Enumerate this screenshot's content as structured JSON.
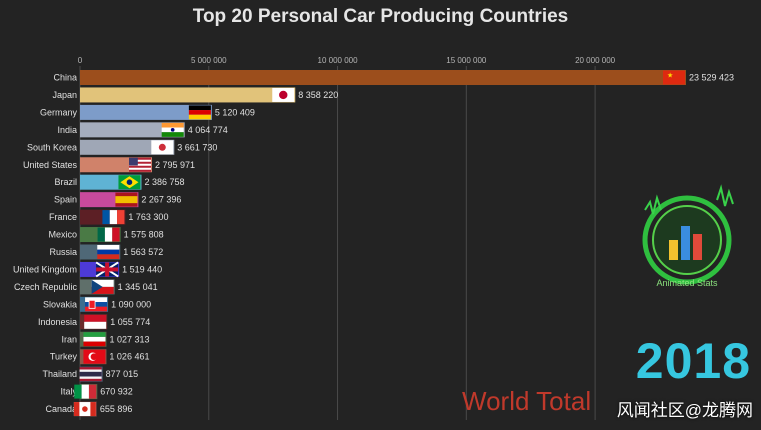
{
  "chart_data": {
    "type": "bar",
    "orientation": "horizontal",
    "title": "Top 20 Personal Car Producing Countries",
    "year": "2018",
    "footer_text": "World Total",
    "xlim": [
      0,
      23529423
    ],
    "x_ticks": [
      0,
      5000000,
      10000000,
      15000000,
      20000000
    ],
    "x_tick_labels": [
      "0",
      "5 000 000",
      "10 000 000",
      "15 000 000",
      "20 000 000"
    ],
    "grid": true,
    "categories": [
      "China",
      "Japan",
      "Germany",
      "India",
      "South Korea",
      "United States",
      "Brazil",
      "Spain",
      "France",
      "Mexico",
      "Russia",
      "United Kingdom",
      "Czech Republic",
      "Slovakia",
      "Indonesia",
      "Iran",
      "Turkey",
      "Thailand",
      "Italy",
      "Canada"
    ],
    "values": [
      23529423,
      8358220,
      5120409,
      4064774,
      3661730,
      2795971,
      2386758,
      2267396,
      1763300,
      1575808,
      1563572,
      1519440,
      1345041,
      1090000,
      1055774,
      1027313,
      1026461,
      877015,
      670932,
      655896
    ],
    "value_labels": [
      "23 529 423",
      "8 358 220",
      "5 120 409",
      "4 064 774",
      "3 661 730",
      "2 795 971",
      "2 386 758",
      "2 267 396",
      "1 763 300",
      "1 575 808",
      "1 563 572",
      "1 519 440",
      "1 345 041",
      "1 090 000",
      "1 055 774",
      "1 027 313",
      "1 026 461",
      "877 015",
      "670 932",
      "655 896"
    ],
    "colors": [
      "#9c4e1c",
      "#e1c37a",
      "#7d9cc9",
      "#a5adbd",
      "#9fa7b6",
      "#d0826a",
      "#5fb3d4",
      "#c84a9c",
      "#5c1f25",
      "#4a7a45",
      "#4f6877",
      "#4d3ad6",
      "#5f6f6a",
      "#3b6e8f",
      "#6b2b2b",
      "#53684a",
      "#8c5a4a",
      "#4d5f7a",
      "#5a6a4a",
      "#6a3a3a"
    ],
    "flags": [
      "cn",
      "jp",
      "de",
      "in",
      "kr",
      "us",
      "br",
      "es",
      "fr",
      "mx",
      "ru",
      "gb",
      "cz",
      "sk",
      "id",
      "ir",
      "tr",
      "th",
      "it",
      "ca"
    ]
  },
  "logo": {
    "label": "Animated Stats"
  },
  "watermark": "风闻社区@龙腾网"
}
